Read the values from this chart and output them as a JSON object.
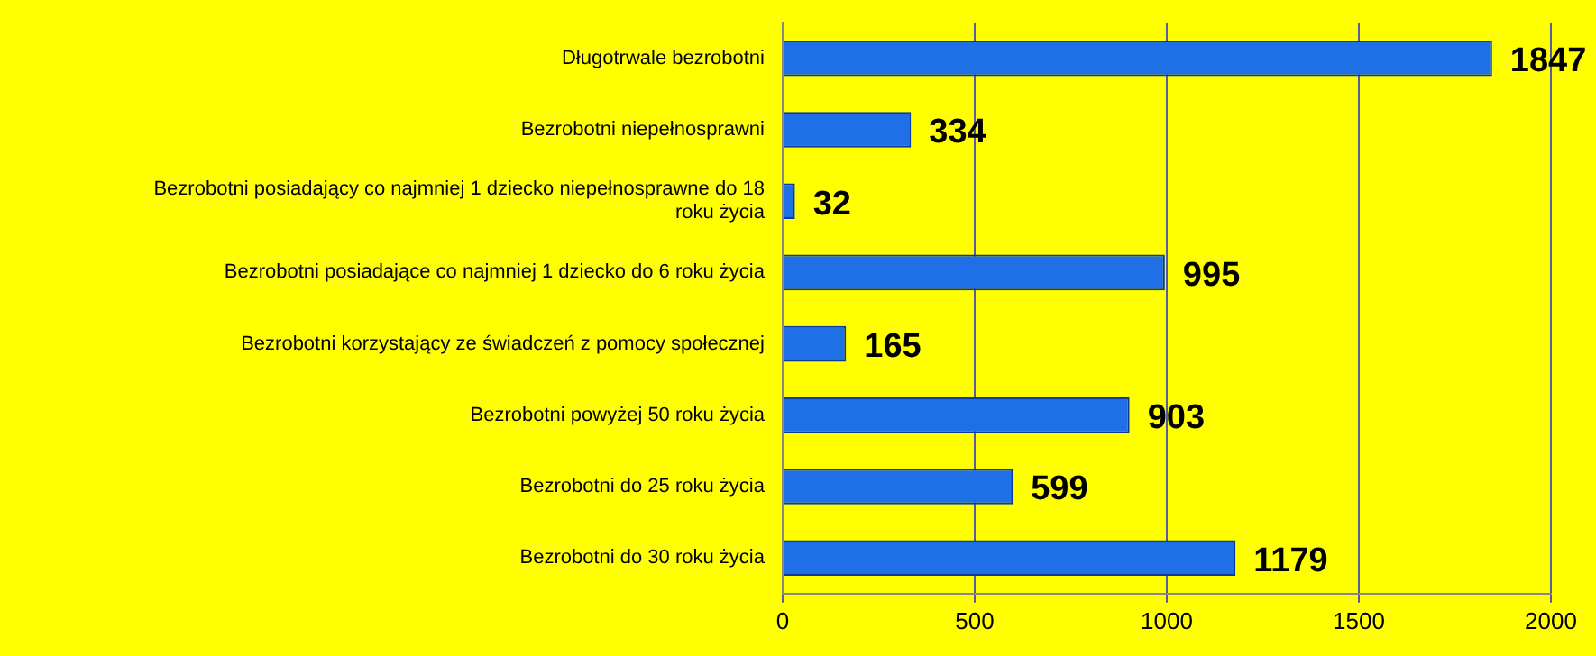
{
  "chart_data": {
    "type": "bar",
    "orientation": "horizontal",
    "categories": [
      "Długotrwale bezrobotni",
      "Bezrobotni niepełnosprawni",
      "Bezrobotni posiadający co najmniej 1 dziecko niepełnosprawne do 18 roku życia",
      "Bezrobotni posiadające co najmniej 1 dziecko do 6 roku życia",
      "Bezrobotni korzystający ze świadczeń z pomocy społecznej",
      "Bezrobotni powyżej 50 roku życia",
      "Bezrobotni do 25 roku życia",
      "Bezrobotni do 30 roku życia"
    ],
    "values": [
      1847,
      334,
      32,
      995,
      165,
      903,
      599,
      1179
    ],
    "color": "#1f6fe6",
    "xlim": [
      0,
      2000
    ],
    "xticks": [
      0,
      500,
      1000,
      1500,
      2000
    ],
    "grid": "x",
    "data_labels": true,
    "legend": false
  }
}
